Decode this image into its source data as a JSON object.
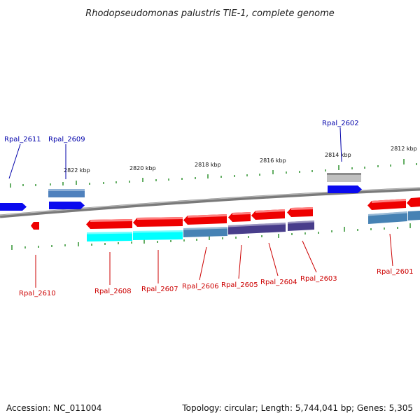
{
  "title": "Rhodopseudomonas palustris TIE-1, complete genome",
  "footer": {
    "accession": "Accession: NC_011004",
    "topology": "Topology: circular; Length: 5,744,041 bp; Genes: 5,305"
  },
  "colors": {
    "label_plus": "#0000aa",
    "label_minus": "#cc0000",
    "tick": "#228b22",
    "backbone": "#7a7a7a"
  },
  "scale_labels": [
    "2822 kbp",
    "2820 kbp",
    "2818 kbp",
    "2816 kbp",
    "2814 kbp",
    "2812 kbp"
  ],
  "gene_labels": {
    "rpal_2611": "Rpal_2611",
    "rpal_2609": "Rpal_2609",
    "rpal_2602": "Rpal_2602",
    "rpal_2610": "Rpal_2610",
    "rpal_2608": "Rpal_2608",
    "rpal_2607": "Rpal_2607",
    "rpal_2606": "Rpal_2606",
    "rpal_2605": "Rpal_2605",
    "rpal_2604": "Rpal_2604",
    "rpal_2603": "Rpal_2603",
    "rpal_2601": "Rpal_2601"
  }
}
